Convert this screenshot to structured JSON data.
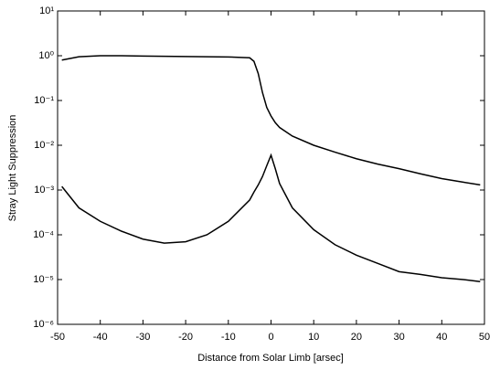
{
  "chart_data": {
    "type": "line",
    "xlabel": "Distance from Solar Limb [arsec]",
    "ylabel": "Stray Light Suppression",
    "x": [
      -49,
      -45,
      -40,
      -35,
      -30,
      -25,
      -20,
      -15,
      -10,
      -5,
      -4,
      -3,
      -2,
      -1,
      0,
      1,
      2,
      5,
      10,
      15,
      20,
      25,
      30,
      35,
      40,
      45,
      49
    ],
    "series": [
      {
        "color": "#000000",
        "values": [
          0.8,
          0.95,
          1.0,
          1.0,
          0.98,
          0.97,
          0.96,
          0.95,
          0.94,
          0.9,
          0.75,
          0.4,
          0.15,
          0.07,
          0.045,
          0.032,
          0.025,
          0.016,
          0.01,
          0.007,
          0.005,
          0.0038,
          0.003,
          0.0023,
          0.0018,
          0.0015,
          0.0013
        ]
      },
      {
        "color": "#000000",
        "values": [
          0.0012,
          0.0004,
          0.0002,
          0.00012,
          8e-05,
          6.5e-05,
          7e-05,
          0.0001,
          0.0002,
          0.0006,
          0.0009,
          0.0013,
          0.002,
          0.0035,
          0.006,
          0.003,
          0.0014,
          0.0004,
          0.00013,
          6e-05,
          3.5e-05,
          2.3e-05,
          1.5e-05,
          1.3e-05,
          1.1e-05,
          1e-05,
          9e-06
        ]
      }
    ],
    "xlim": [
      -50,
      50
    ],
    "xticks": [
      -50,
      -40,
      -30,
      -20,
      -10,
      0,
      10,
      20,
      30,
      40,
      50
    ],
    "ylim": [
      1e-06,
      10
    ],
    "yscale": "log",
    "yticks": [
      {
        "value": 1e-06,
        "label": "10⁻⁶"
      },
      {
        "value": 1e-05,
        "label": "10⁻⁵"
      },
      {
        "value": 0.0001,
        "label": "10⁻⁴"
      },
      {
        "value": 0.001,
        "label": "10⁻³"
      },
      {
        "value": 0.01,
        "label": "10⁻²"
      },
      {
        "value": 0.1,
        "label": "10⁻¹"
      },
      {
        "value": 1,
        "label": "10⁰"
      },
      {
        "value": 10,
        "label": "10¹"
      }
    ],
    "grid": false
  }
}
